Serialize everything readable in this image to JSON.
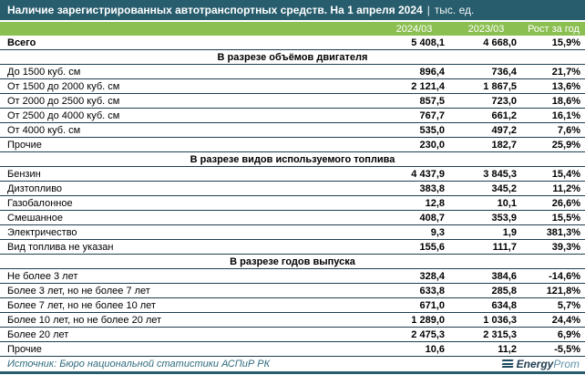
{
  "title": {
    "main": "Наличие зарегистрированных автотранспортных средств. На 1 апреля 2024",
    "separator": "|",
    "unit": "тыс. ед."
  },
  "table": {
    "columns": [
      "2024/03",
      "2023/03",
      "Рост за год"
    ],
    "total": {
      "label": "Всего",
      "values": [
        "5 408,1",
        "4 668,0",
        "15,9%"
      ]
    },
    "sections": [
      {
        "header": "В разрезе объёмов двигателя",
        "rows": [
          {
            "label": "До 1500 куб. см",
            "values": [
              "896,4",
              "736,4",
              "21,7%"
            ]
          },
          {
            "label": "От 1500 до 2000 куб. см",
            "values": [
              "2 121,4",
              "1 867,5",
              "13,6%"
            ]
          },
          {
            "label": "От 2000 до 2500 куб. см",
            "values": [
              "857,5",
              "723,0",
              "18,6%"
            ]
          },
          {
            "label": "От 2500 до 4000 куб. см",
            "values": [
              "767,7",
              "661,2",
              "16,1%"
            ]
          },
          {
            "label": "От 4000 куб. см",
            "values": [
              "535,0",
              "497,2",
              "7,6%"
            ]
          },
          {
            "label": "Прочие",
            "values": [
              "230,0",
              "182,7",
              "25,9%"
            ]
          }
        ]
      },
      {
        "header": "В разрезе видов используемого топлива",
        "rows": [
          {
            "label": "Бензин",
            "values": [
              "4 437,9",
              "3 845,3",
              "15,4%"
            ]
          },
          {
            "label": "Дизтопливо",
            "values": [
              "383,8",
              "345,2",
              "11,2%"
            ]
          },
          {
            "label": "Газобалонное",
            "values": [
              "12,8",
              "10,1",
              "26,6%"
            ]
          },
          {
            "label": "Смешанное",
            "values": [
              "408,7",
              "353,9",
              "15,5%"
            ]
          },
          {
            "label": "Электричество",
            "values": [
              "9,3",
              "1,9",
              "381,3%"
            ]
          },
          {
            "label": "Вид топлива не указан",
            "values": [
              "155,6",
              "111,7",
              "39,3%"
            ]
          }
        ]
      },
      {
        "header": "В разрезе годов выпуска",
        "rows": [
          {
            "label": "Не более 3 лет",
            "values": [
              "328,4",
              "384,6",
              "-14,6%"
            ]
          },
          {
            "label": "Более 3 лет, но не более 7 лет",
            "values": [
              "633,8",
              "285,8",
              "121,8%"
            ]
          },
          {
            "label": "Более 7 лет, но не более 10 лет",
            "values": [
              "671,0",
              "634,8",
              "5,7%"
            ]
          },
          {
            "label": "Более 10 лет, но не более 20 лет",
            "values": [
              "1 289,0",
              "1 036,3",
              "24,4%"
            ]
          },
          {
            "label": "Более 20 лет",
            "values": [
              "2 475,3",
              "2 315,3",
              "6,9%"
            ]
          },
          {
            "label": "Прочие",
            "values": [
              "10,6",
              "11,2",
              "-5,5%"
            ]
          }
        ]
      }
    ]
  },
  "footer": {
    "source": "Источник: Бюро национальной статистики АСПиР РК",
    "logo_bold": "Energy",
    "logo_light": "Prom"
  },
  "colors": {
    "header_teal": "#275D6D",
    "accent_green": "#8CBF52",
    "row_border": "#1D4050",
    "source_text": "#2F6B7C",
    "logo_dark": "#1E3D50",
    "logo_light": "#5F94A9"
  },
  "chart_data": {
    "type": "table",
    "title": "Наличие зарегистрированных автотранспортных средств. На 1 апреля 2024, тыс. ед.",
    "columns": [
      "2024/03",
      "2023/03",
      "Рост за год, %"
    ],
    "total": {
      "label": "Всего",
      "v2024_03": 5408.1,
      "v2023_03": 4668.0,
      "growth_pct": 15.9
    },
    "sections": [
      {
        "name": "В разрезе объёмов двигателя",
        "rows": [
          {
            "label": "До 1500 куб. см",
            "v2024_03": 896.4,
            "v2023_03": 736.4,
            "growth_pct": 21.7
          },
          {
            "label": "От 1500 до 2000 куб. см",
            "v2024_03": 2121.4,
            "v2023_03": 1867.5,
            "growth_pct": 13.6
          },
          {
            "label": "От 2000 до 2500 куб. см",
            "v2024_03": 857.5,
            "v2023_03": 723.0,
            "growth_pct": 18.6
          },
          {
            "label": "От 2500 до 4000 куб. см",
            "v2024_03": 767.7,
            "v2023_03": 661.2,
            "growth_pct": 16.1
          },
          {
            "label": "От 4000 куб. см",
            "v2024_03": 535.0,
            "v2023_03": 497.2,
            "growth_pct": 7.6
          },
          {
            "label": "Прочие",
            "v2024_03": 230.0,
            "v2023_03": 182.7,
            "growth_pct": 25.9
          }
        ]
      },
      {
        "name": "В разрезе видов используемого топлива",
        "rows": [
          {
            "label": "Бензин",
            "v2024_03": 4437.9,
            "v2023_03": 3845.3,
            "growth_pct": 15.4
          },
          {
            "label": "Дизтопливо",
            "v2024_03": 383.8,
            "v2023_03": 345.2,
            "growth_pct": 11.2
          },
          {
            "label": "Газобалонное",
            "v2024_03": 12.8,
            "v2023_03": 10.1,
            "growth_pct": 26.6
          },
          {
            "label": "Смешанное",
            "v2024_03": 408.7,
            "v2023_03": 353.9,
            "growth_pct": 15.5
          },
          {
            "label": "Электричество",
            "v2024_03": 9.3,
            "v2023_03": 1.9,
            "growth_pct": 381.3
          },
          {
            "label": "Вид топлива не указан",
            "v2024_03": 155.6,
            "v2023_03": 111.7,
            "growth_pct": 39.3
          }
        ]
      },
      {
        "name": "В разрезе годов выпуска",
        "rows": [
          {
            "label": "Не более 3 лет",
            "v2024_03": 328.4,
            "v2023_03": 384.6,
            "growth_pct": -14.6
          },
          {
            "label": "Более 3 лет, но не более 7 лет",
            "v2024_03": 633.8,
            "v2023_03": 285.8,
            "growth_pct": 121.8
          },
          {
            "label": "Более 7 лет, но не более 10 лет",
            "v2024_03": 671.0,
            "v2023_03": 634.8,
            "growth_pct": 5.7
          },
          {
            "label": "Более 10 лет, но не более 20 лет",
            "v2024_03": 1289.0,
            "v2023_03": 1036.3,
            "growth_pct": 24.4
          },
          {
            "label": "Более 20 лет",
            "v2024_03": 2475.3,
            "v2023_03": 2315.3,
            "growth_pct": 6.9
          },
          {
            "label": "Прочие",
            "v2024_03": 10.6,
            "v2023_03": 11.2,
            "growth_pct": -5.5
          }
        ]
      }
    ],
    "source": "Бюро национальной статистики АСПиР РК"
  }
}
